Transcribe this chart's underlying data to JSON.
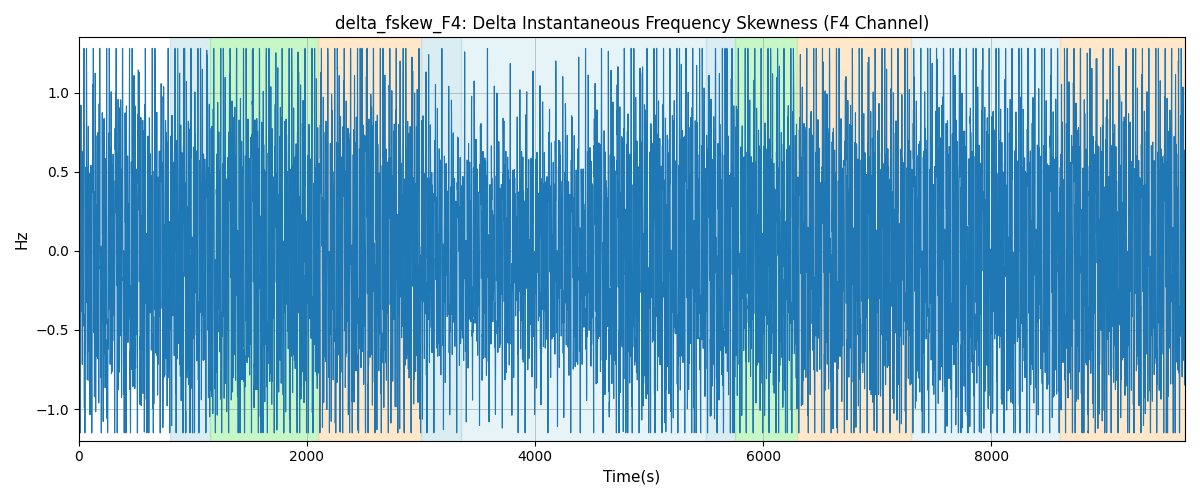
{
  "title": "delta_fskew_F4: Delta Instantaneous Frequency Skewness (F4 Channel)",
  "xlabel": "Time(s)",
  "ylabel": "Hz",
  "ylim": [
    -1.2,
    1.35
  ],
  "xlim": [
    0,
    9700
  ],
  "line_color": "#1f77b4",
  "line_width": 0.8,
  "background_color": "#ffffff",
  "grid": true,
  "bands": [
    {
      "xmin": 0,
      "xmax": 800,
      "color": "#add8e6",
      "alpha": 0.0
    },
    {
      "xmin": 800,
      "xmax": 1150,
      "color": "#add8e6",
      "alpha": 0.45
    },
    {
      "xmin": 1150,
      "xmax": 2100,
      "color": "#90ee90",
      "alpha": 0.5
    },
    {
      "xmin": 2100,
      "xmax": 3000,
      "color": "#ffd59f",
      "alpha": 0.55
    },
    {
      "xmin": 3000,
      "xmax": 3350,
      "color": "#add8e6",
      "alpha": 0.45
    },
    {
      "xmin": 3350,
      "xmax": 5500,
      "color": "#add8e6",
      "alpha": 0.3
    },
    {
      "xmin": 5500,
      "xmax": 5750,
      "color": "#add8e6",
      "alpha": 0.45
    },
    {
      "xmin": 5750,
      "xmax": 6300,
      "color": "#90ee90",
      "alpha": 0.5
    },
    {
      "xmin": 6300,
      "xmax": 7300,
      "color": "#ffd59f",
      "alpha": 0.55
    },
    {
      "xmin": 7300,
      "xmax": 8600,
      "color": "#add8e6",
      "alpha": 0.3
    },
    {
      "xmin": 8600,
      "xmax": 9700,
      "color": "#ffd59f",
      "alpha": 0.55
    }
  ],
  "seed": 42,
  "n_points": 9700,
  "dt": 1.0,
  "xticks": [
    0,
    2000,
    4000,
    6000,
    8000
  ],
  "yticks": [
    -1.0,
    -0.5,
    0.0,
    0.5,
    1.0
  ]
}
